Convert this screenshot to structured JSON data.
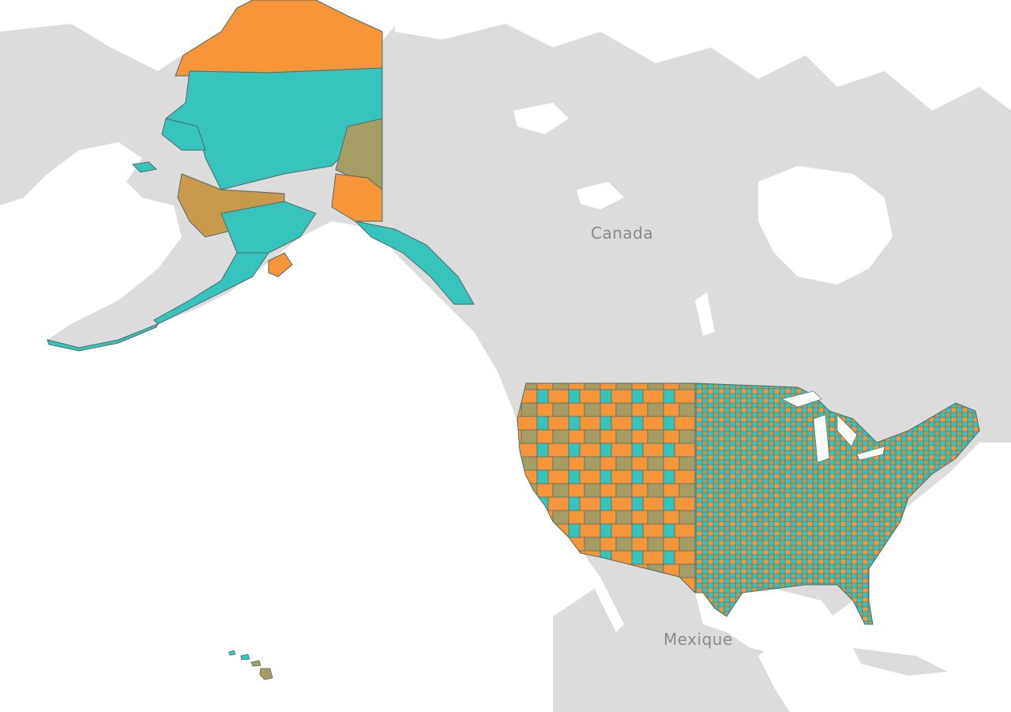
{
  "map": {
    "labels": {
      "canada": "Canada",
      "mexico": "Mexique"
    },
    "colors": {
      "ocean": "#ffffff",
      "land": "#dcdcdc",
      "water_inland": "#ffffff",
      "teal": "#36c4bd",
      "orange": "#f7953b",
      "brown": "#c99a4c",
      "olive": "#a69d65",
      "border": "#4d6a66"
    },
    "regions": [
      "alaska",
      "contiguous-us",
      "hawaii"
    ]
  }
}
